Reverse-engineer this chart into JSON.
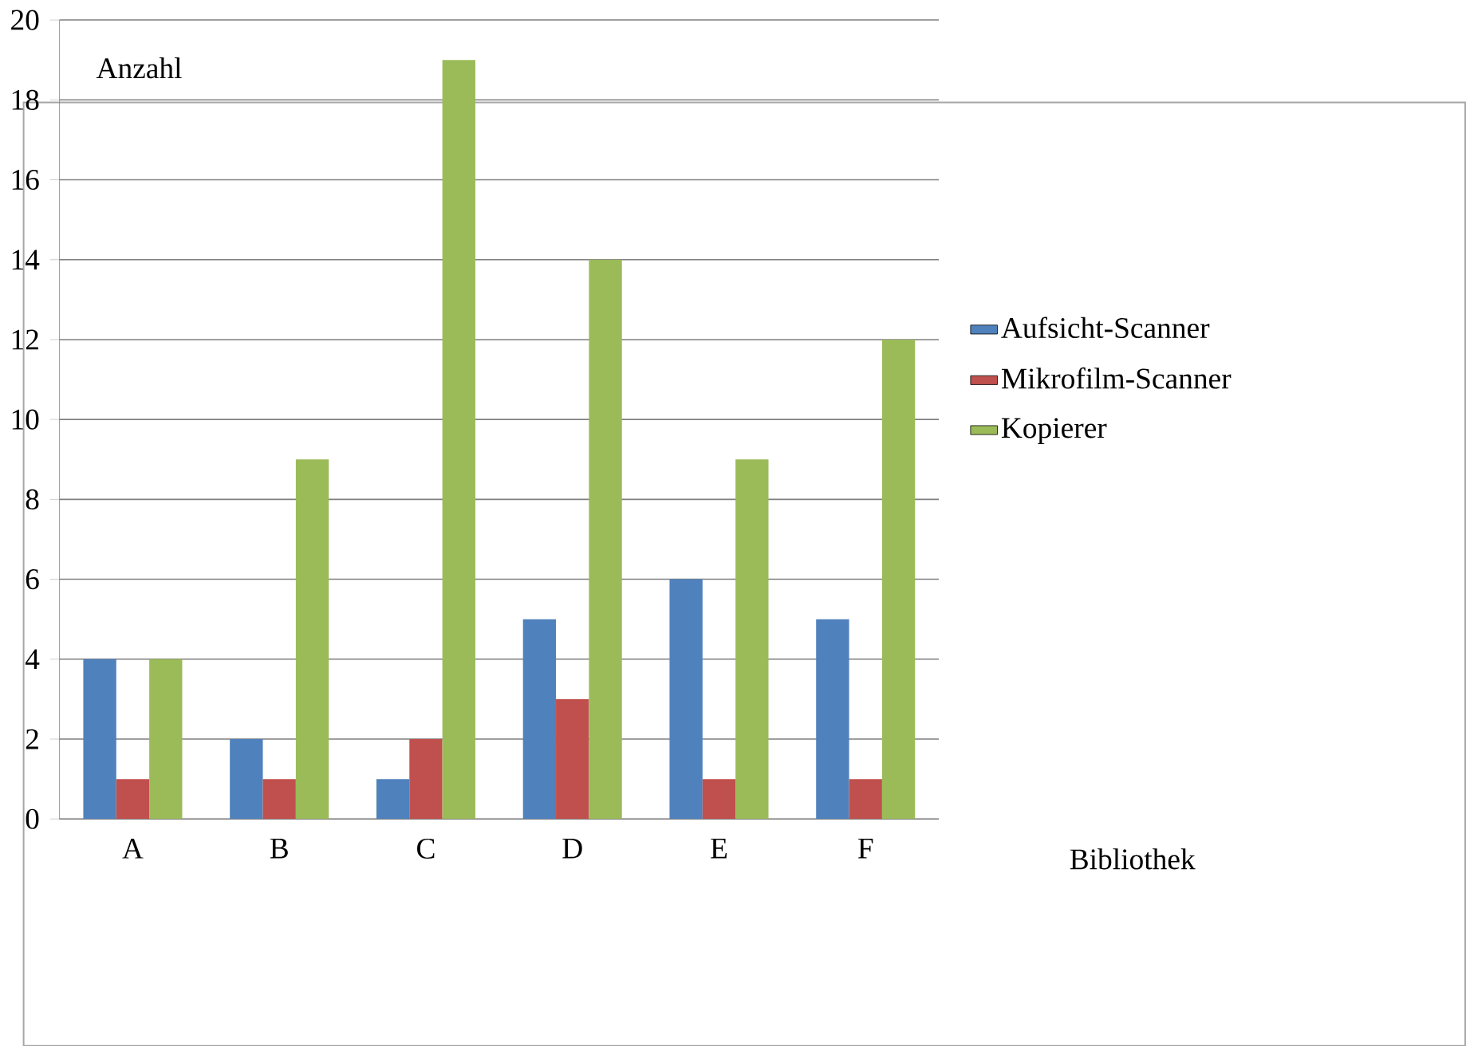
{
  "chart_data": {
    "type": "bar",
    "categories": [
      "A",
      "B",
      "C",
      "D",
      "E",
      "F"
    ],
    "xlabel": "Bibliothek",
    "ylabel": "Anzahl",
    "series": [
      {
        "name": "Aufsicht-Scanner",
        "color": "#4f81bd",
        "values": [
          4,
          2,
          1,
          5,
          6,
          5
        ]
      },
      {
        "name": "Mikrofilm-Scanner",
        "color": "#c0504d",
        "values": [
          1,
          1,
          2,
          3,
          1,
          1
        ]
      },
      {
        "name": "Kopierer",
        "color": "#9bbb59",
        "values": [
          4,
          9,
          19,
          14,
          9,
          12
        ]
      }
    ],
    "ylim": [
      0,
      20
    ],
    "yticks": [
      0,
      2,
      4,
      6,
      8,
      10,
      12,
      14,
      16,
      18,
      20
    ],
    "grid": "y",
    "legend": "right"
  }
}
